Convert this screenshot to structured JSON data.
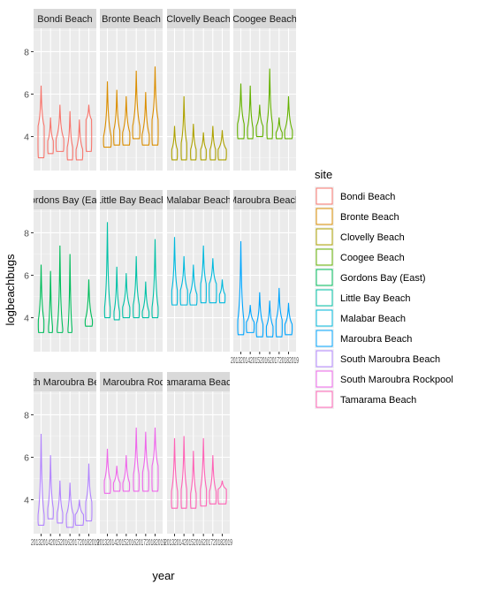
{
  "chart_data": {
    "type": "violin",
    "xlabel": "year",
    "ylabel": "logbeachbugs",
    "ylim": [
      2.4,
      9.1
    ],
    "y_ticks": [
      "4",
      "6",
      "8"
    ],
    "x_tick_label": "2013201420152016201720182019",
    "facet_layout": {
      "cols": 4,
      "rows": 3
    },
    "grid": true,
    "legend": {
      "title": "site",
      "placement": "right",
      "entries": [
        {
          "label": "Bondi Beach",
          "color": "#F8766D"
        },
        {
          "label": "Bronte Beach",
          "color": "#DB8E00"
        },
        {
          "label": "Clovelly Beach",
          "color": "#AEA200"
        },
        {
          "label": "Coogee Beach",
          "color": "#64B200"
        },
        {
          "label": "Gordons Bay (East)",
          "color": "#00BD5C"
        },
        {
          "label": "Little Bay Beach",
          "color": "#00C1A7"
        },
        {
          "label": "Malabar Beach",
          "color": "#00BADE"
        },
        {
          "label": "Maroubra Beach",
          "color": "#00A6FF"
        },
        {
          "label": "South Maroubra Beach",
          "color": "#B385FF"
        },
        {
          "label": "South Maroubra Rockpool",
          "color": "#EF67EB"
        },
        {
          "label": "Tamarama Beach",
          "color": "#FF63B6"
        }
      ]
    },
    "panels": [
      {
        "strip": "Bondi Beach",
        "color": "#F8766D",
        "violins": [
          {
            "min": 3.0,
            "max": 6.4,
            "peak": 4.5,
            "shape": 0.6
          },
          {
            "min": 3.2,
            "max": 4.9,
            "peak": 3.8,
            "shape": 0.5
          },
          {
            "min": 3.3,
            "max": 5.5,
            "peak": 3.9,
            "shape": 0.9
          },
          {
            "min": 2.9,
            "max": 5.2,
            "peak": 3.5,
            "shape": 0.5
          },
          {
            "min": 2.9,
            "max": 4.8,
            "peak": 3.4,
            "shape": 0.7
          },
          {
            "min": 3.3,
            "max": 5.5,
            "peak": 4.8,
            "shape": 0.5
          }
        ]
      },
      {
        "strip": "Bronte Beach",
        "color": "#DB8E00",
        "violins": [
          {
            "min": 3.5,
            "max": 6.6,
            "peak": 4.0,
            "shape": 0.9
          },
          {
            "min": 3.6,
            "max": 6.2,
            "peak": 4.3,
            "shape": 0.6
          },
          {
            "min": 3.6,
            "max": 5.9,
            "peak": 4.2,
            "shape": 0.8
          },
          {
            "min": 3.9,
            "max": 7.1,
            "peak": 4.5,
            "shape": 0.8
          },
          {
            "min": 3.6,
            "max": 6.1,
            "peak": 4.1,
            "shape": 0.8
          },
          {
            "min": 3.6,
            "max": 7.3,
            "peak": 4.8,
            "shape": 0.6
          }
        ]
      },
      {
        "strip": "Clovelly Beach",
        "color": "#AEA200",
        "violins": [
          {
            "min": 2.9,
            "max": 4.5,
            "peak": 3.4,
            "shape": 0.5
          },
          {
            "min": 2.9,
            "max": 5.9,
            "peak": 3.7,
            "shape": 0.5
          },
          {
            "min": 2.9,
            "max": 4.6,
            "peak": 3.4,
            "shape": 0.5
          },
          {
            "min": 2.9,
            "max": 4.2,
            "peak": 3.4,
            "shape": 0.5
          },
          {
            "min": 2.9,
            "max": 4.5,
            "peak": 3.4,
            "shape": 0.5
          },
          {
            "min": 2.9,
            "max": 4.3,
            "peak": 3.4,
            "shape": 1.0
          }
        ]
      },
      {
        "strip": "Coogee Beach",
        "color": "#64B200",
        "violins": [
          {
            "min": 3.9,
            "max": 6.5,
            "peak": 4.6,
            "shape": 0.7
          },
          {
            "min": 3.9,
            "max": 6.4,
            "peak": 4.4,
            "shape": 0.5
          },
          {
            "min": 4.0,
            "max": 5.5,
            "peak": 4.5,
            "shape": 0.7
          },
          {
            "min": 3.9,
            "max": 7.2,
            "peak": 4.6,
            "shape": 0.5
          },
          {
            "min": 3.9,
            "max": 4.9,
            "peak": 4.2,
            "shape": 0.6
          },
          {
            "min": 3.9,
            "max": 5.9,
            "peak": 4.3,
            "shape": 0.9
          }
        ]
      },
      {
        "strip": "Gordons Bay (East)",
        "color": "#00BD5C",
        "violins": [
          {
            "min": 3.3,
            "max": 6.5,
            "peak": 3.9,
            "shape": 0.5
          },
          {
            "min": 3.3,
            "max": 6.2,
            "peak": 3.6,
            "shape": 0.2
          },
          {
            "min": 3.3,
            "max": 7.4,
            "peak": 3.5,
            "shape": 0.5
          },
          {
            "min": 3.3,
            "max": 7.0,
            "peak": 3.5,
            "shape": 0.2
          },
          {
            "min": null,
            "max": null,
            "peak": null,
            "shape": 0
          },
          {
            "min": 3.6,
            "max": 5.8,
            "peak": 3.9,
            "shape": 0.8
          }
        ]
      },
      {
        "strip": "Little Bay Beach",
        "color": "#00C1A7",
        "violins": [
          {
            "min": 4.0,
            "max": 8.5,
            "peak": 4.5,
            "shape": 0.5
          },
          {
            "min": 3.9,
            "max": 6.4,
            "peak": 4.3,
            "shape": 0.5
          },
          {
            "min": 4.0,
            "max": 6.1,
            "peak": 4.5,
            "shape": 0.8
          },
          {
            "min": 4.0,
            "max": 6.9,
            "peak": 4.6,
            "shape": 0.6
          },
          {
            "min": 4.0,
            "max": 5.7,
            "peak": 4.3,
            "shape": 0.7
          },
          {
            "min": 4.0,
            "max": 7.7,
            "peak": 4.5,
            "shape": 0.6
          }
        ]
      },
      {
        "strip": "Malabar Beach",
        "color": "#00BADE",
        "violins": [
          {
            "min": 4.6,
            "max": 7.8,
            "peak": 5.3,
            "shape": 0.5
          },
          {
            "min": 4.6,
            "max": 6.9,
            "peak": 5.3,
            "shape": 0.8
          },
          {
            "min": 4.6,
            "max": 6.5,
            "peak": 5.1,
            "shape": 0.8
          },
          {
            "min": 4.7,
            "max": 7.4,
            "peak": 5.6,
            "shape": 0.5
          },
          {
            "min": 4.7,
            "max": 6.8,
            "peak": 5.6,
            "shape": 0.8
          },
          {
            "min": 4.7,
            "max": 5.8,
            "peak": 5.1,
            "shape": 0.5
          }
        ]
      },
      {
        "strip": "Maroubra Beach",
        "color": "#00A6FF",
        "violins": [
          {
            "min": 3.2,
            "max": 7.6,
            "peak": 3.9,
            "shape": 0.6
          },
          {
            "min": 3.3,
            "max": 4.6,
            "peak": 3.8,
            "shape": 0.9
          },
          {
            "min": 3.1,
            "max": 5.2,
            "peak": 3.7,
            "shape": 0.7
          },
          {
            "min": 3.1,
            "max": 4.8,
            "peak": 3.6,
            "shape": 0.7
          },
          {
            "min": 3.1,
            "max": 5.4,
            "peak": 3.9,
            "shape": 0.6
          },
          {
            "min": 3.2,
            "max": 4.7,
            "peak": 3.7,
            "shape": 0.8
          }
        ]
      },
      {
        "strip": "South Maroubra Beach",
        "color": "#B385FF",
        "violins": [
          {
            "min": 2.8,
            "max": 7.1,
            "peak": 3.3,
            "shape": 0.6
          },
          {
            "min": 3.1,
            "max": 6.1,
            "peak": 3.6,
            "shape": 0.5
          },
          {
            "min": 2.9,
            "max": 4.9,
            "peak": 3.4,
            "shape": 0.5
          },
          {
            "min": 2.7,
            "max": 4.8,
            "peak": 3.3,
            "shape": 0.8
          },
          {
            "min": 2.8,
            "max": 4.0,
            "peak": 3.3,
            "shape": 1.0
          },
          {
            "min": 3.0,
            "max": 5.7,
            "peak": 3.9,
            "shape": 0.6
          }
        ]
      },
      {
        "strip": "South Maroubra Rockpool",
        "color": "#EF67EB",
        "violins": [
          {
            "min": 4.3,
            "max": 6.4,
            "peak": 4.9,
            "shape": 0.6
          },
          {
            "min": 4.4,
            "max": 5.6,
            "peak": 4.8,
            "shape": 0.7
          },
          {
            "min": 4.4,
            "max": 6.1,
            "peak": 4.8,
            "shape": 0.7
          },
          {
            "min": 4.4,
            "max": 7.4,
            "peak": 5.2,
            "shape": 0.5
          },
          {
            "min": 4.4,
            "max": 7.2,
            "peak": 5.3,
            "shape": 0.6
          },
          {
            "min": 4.4,
            "max": 7.4,
            "peak": 5.6,
            "shape": 0.6
          }
        ]
      },
      {
        "strip": "Tamarama Beach",
        "color": "#FF63B6",
        "violins": [
          {
            "min": 3.6,
            "max": 6.9,
            "peak": 4.4,
            "shape": 0.6
          },
          {
            "min": 3.6,
            "max": 7.0,
            "peak": 4.5,
            "shape": 0.5
          },
          {
            "min": 3.6,
            "max": 6.3,
            "peak": 4.3,
            "shape": 0.5
          },
          {
            "min": 3.7,
            "max": 6.9,
            "peak": 4.5,
            "shape": 0.6
          },
          {
            "min": 3.8,
            "max": 6.1,
            "peak": 4.4,
            "shape": 0.7
          },
          {
            "min": 3.8,
            "max": 4.9,
            "peak": 4.5,
            "shape": 1.0
          }
        ]
      }
    ]
  }
}
